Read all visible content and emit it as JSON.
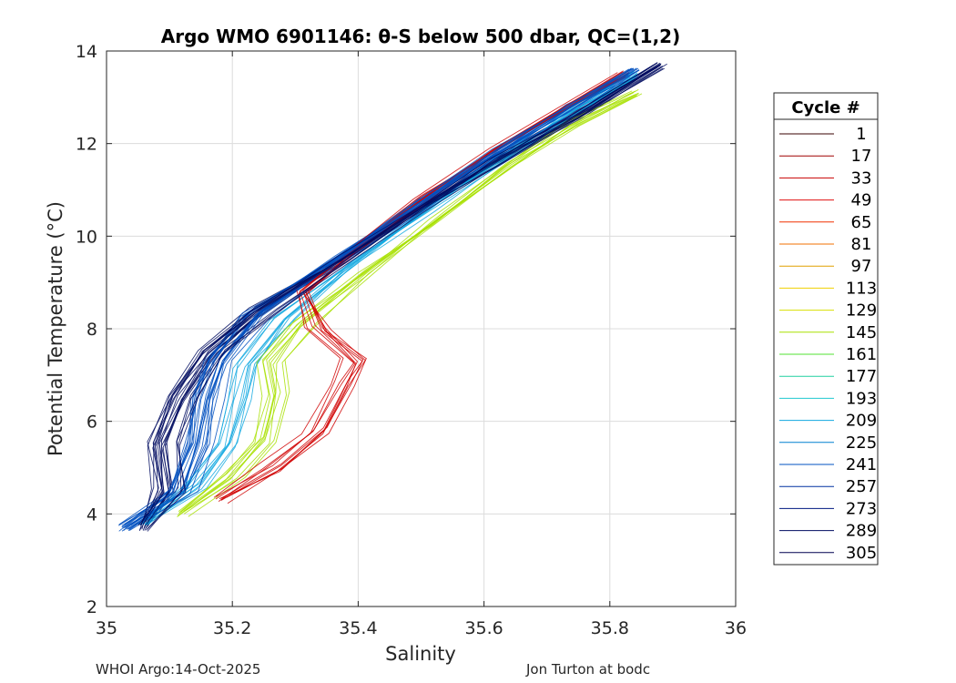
{
  "chart_data": {
    "type": "line",
    "title": "Argo WMO 6901146: θ-S below 500 dbar,  QC=(1,2)",
    "xlabel": "Salinity",
    "ylabel": "Potential Temperature (°C)",
    "xlim": [
      35,
      36
    ],
    "ylim": [
      2,
      14
    ],
    "xticks": [
      "35",
      "35.2",
      "35.4",
      "35.6",
      "35.8",
      "36"
    ],
    "yticks": [
      "2",
      "4",
      "6",
      "8",
      "10",
      "12",
      "14"
    ],
    "grid": true,
    "legend_title": "Cycle #",
    "legend_placement": "right-outside",
    "legend": [
      {
        "label": "1",
        "color": "#3a0000"
      },
      {
        "label": "17",
        "color": "#a00000"
      },
      {
        "label": "33",
        "color": "#c80000"
      },
      {
        "label": "49",
        "color": "#e01010"
      },
      {
        "label": "65",
        "color": "#f03000"
      },
      {
        "label": "81",
        "color": "#f07000"
      },
      {
        "label": "97",
        "color": "#e0a000"
      },
      {
        "label": "113",
        "color": "#f0d000"
      },
      {
        "label": "129",
        "color": "#d8e000"
      },
      {
        "label": "145",
        "color": "#a8e000"
      },
      {
        "label": "161",
        "color": "#50e030"
      },
      {
        "label": "177",
        "color": "#20d0a0"
      },
      {
        "label": "193",
        "color": "#20c8d0"
      },
      {
        "label": "209",
        "color": "#10a8e0"
      },
      {
        "label": "225",
        "color": "#0080d0"
      },
      {
        "label": "241",
        "color": "#0050c0"
      },
      {
        "label": "257",
        "color": "#0030a0"
      },
      {
        "label": "273",
        "color": "#001880"
      },
      {
        "label": "289",
        "color": "#000c60"
      },
      {
        "label": "305",
        "color": "#000050"
      }
    ],
    "profile_groups": [
      {
        "group": "dark-blue (late cycles)",
        "color": "#000c60",
        "points": [
          [
            35.06,
            3.7
          ],
          [
            35.1,
            4.5
          ],
          [
            35.09,
            5.5
          ],
          [
            35.12,
            6.5
          ],
          [
            35.17,
            7.5
          ],
          [
            35.25,
            8.4
          ],
          [
            35.38,
            9.5
          ],
          [
            35.5,
            10.6
          ],
          [
            35.62,
            11.6
          ],
          [
            35.75,
            12.6
          ],
          [
            35.88,
            13.7
          ]
        ]
      },
      {
        "group": "blue (mid-late cycles)",
        "color": "#0050c0",
        "points": [
          [
            35.03,
            3.7
          ],
          [
            35.12,
            4.5
          ],
          [
            35.15,
            5.5
          ],
          [
            35.16,
            6.5
          ],
          [
            35.18,
            7.3
          ],
          [
            35.24,
            8.3
          ],
          [
            35.37,
            9.5
          ],
          [
            35.5,
            10.7
          ],
          [
            35.62,
            11.8
          ],
          [
            35.74,
            12.8
          ],
          [
            35.84,
            13.55
          ]
        ]
      },
      {
        "group": "cyan (middle cycles)",
        "color": "#10a8e0",
        "points": [
          [
            35.06,
            3.8
          ],
          [
            35.14,
            4.6
          ],
          [
            35.19,
            5.5
          ],
          [
            35.21,
            6.5
          ],
          [
            35.22,
            7.2
          ],
          [
            35.28,
            8.2
          ],
          [
            35.39,
            9.4
          ],
          [
            35.51,
            10.6
          ],
          [
            35.63,
            11.7
          ],
          [
            35.74,
            12.7
          ],
          [
            35.84,
            13.5
          ]
        ]
      },
      {
        "group": "green-yellow (mid-early)",
        "color": "#a8e000",
        "points": [
          [
            35.12,
            4.0
          ],
          [
            35.2,
            4.8
          ],
          [
            35.25,
            5.6
          ],
          [
            35.27,
            6.6
          ],
          [
            35.26,
            7.3
          ],
          [
            35.31,
            8.1
          ],
          [
            35.41,
            9.2
          ],
          [
            35.52,
            10.3
          ],
          [
            35.64,
            11.5
          ],
          [
            35.74,
            12.4
          ],
          [
            35.84,
            13.1
          ]
        ]
      },
      {
        "group": "red (early cycles)",
        "color": "#d00000",
        "points": [
          [
            35.18,
            4.3
          ],
          [
            35.26,
            5.0
          ],
          [
            35.33,
            5.8
          ],
          [
            35.37,
            6.8
          ],
          [
            35.39,
            7.3
          ],
          [
            35.33,
            8.0
          ],
          [
            35.31,
            8.8
          ],
          [
            35.4,
            9.8
          ],
          [
            35.5,
            10.8
          ],
          [
            35.62,
            11.9
          ],
          [
            35.82,
            13.5
          ]
        ]
      }
    ]
  },
  "footer": {
    "left": "WHOI Argo:14-Oct-2025",
    "right": "Jon Turton at bodc"
  }
}
